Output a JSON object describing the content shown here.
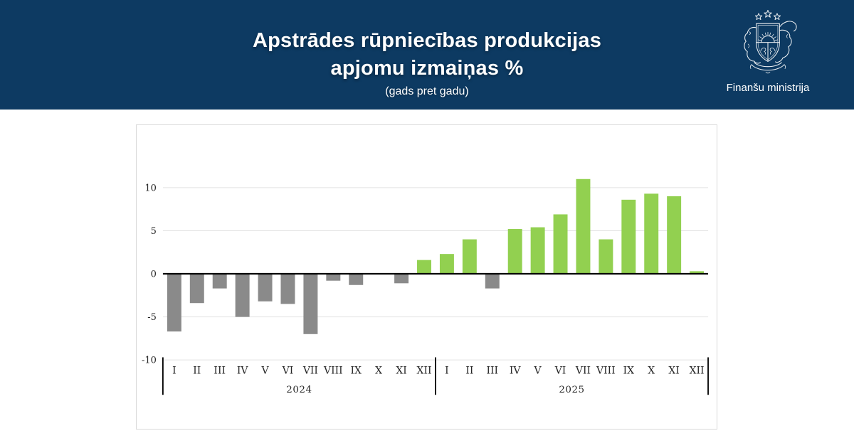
{
  "header": {
    "title_line1": "Apstrādes rūpniecības produkcijas",
    "title_line2": "apjomu izmaiņas %",
    "subtitle": "(gads pret gadu)",
    "logo_caption": "Finanšu ministrija"
  },
  "colors": {
    "header_bg": "#0d3a62",
    "header_text": "#ffffff",
    "positive_bar": "#92d050",
    "negative_bar": "#8a8a8a",
    "grid_line": "#e2e2e2",
    "zero_axis": "#000000",
    "divider": "#000000",
    "card_border": "#d9d9d9",
    "chart_text": "#262626"
  },
  "chart_data": {
    "type": "bar",
    "title": "Apstrādes rūpniecības produkcijas apjomu izmaiņas % (gads pret gadu)",
    "unit": "%",
    "xlabel": "",
    "ylabel": "",
    "ylim": [
      -10,
      12.5
    ],
    "yticks": [
      10,
      5,
      0,
      -5,
      -10
    ],
    "grid": true,
    "legend_position": "none",
    "color_rule": "positive values green, negative values gray",
    "groups": [
      {
        "year": "2024",
        "categories": [
          "I",
          "II",
          "III",
          "IV",
          "V",
          "VI",
          "VII",
          "VIII",
          "IX",
          "X",
          "XI",
          "XII"
        ],
        "values": [
          -6.7,
          -3.4,
          -1.7,
          -5.0,
          -3.2,
          -3.5,
          -7.0,
          -0.8,
          -1.3,
          0.0,
          -1.1,
          1.6
        ]
      },
      {
        "year": "2025",
        "categories": [
          "I",
          "II",
          "III",
          "IV",
          "V",
          "VI",
          "VII",
          "VIII",
          "IX",
          "X",
          "XI",
          "XII"
        ],
        "values": [
          2.3,
          4.0,
          -1.7,
          5.2,
          5.4,
          6.9,
          11.0,
          4.0,
          8.6,
          9.3,
          9.0,
          0.3
        ]
      }
    ]
  }
}
